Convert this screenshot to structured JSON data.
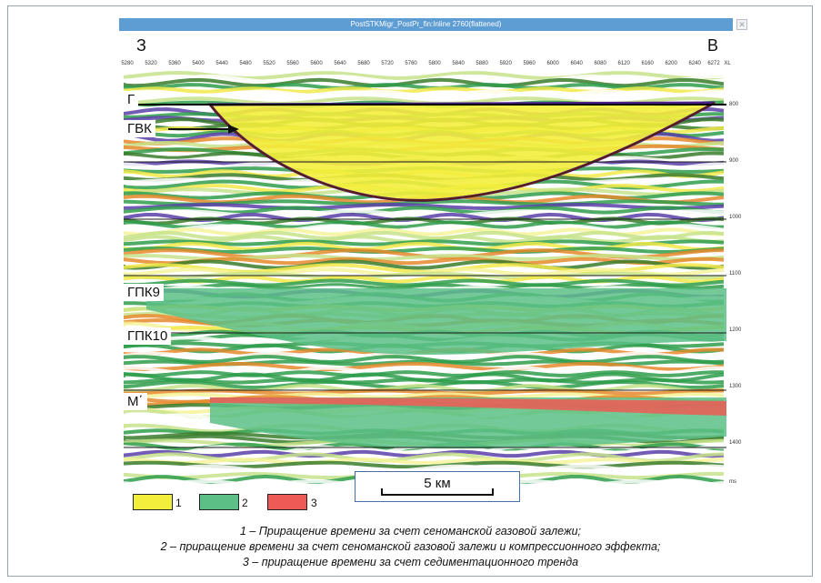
{
  "window": {
    "title": "PostSTKMigr_PostPr_fin:Inline 2760(flattened)",
    "close_glyph": "✕"
  },
  "directions": {
    "west": "З",
    "east": "В"
  },
  "xl_ticks": [
    "5280",
    "5320",
    "5360",
    "5400",
    "5440",
    "5480",
    "5520",
    "5560",
    "5600",
    "5640",
    "5680",
    "5720",
    "5760",
    "5800",
    "5840",
    "5880",
    "5920",
    "5960",
    "6000",
    "6040",
    "6080",
    "6120",
    "6160",
    "6200",
    "6240",
    "6272"
  ],
  "xl_label": "XL",
  "time_ticks": [
    "800",
    "900",
    "1000",
    "1100",
    "1200",
    "1300",
    "1400"
  ],
  "time_unit": "ms",
  "horizons": {
    "g": "Г",
    "gvk": "ГВК",
    "gpk9": "ГПК9",
    "gpk10": "ГПК10",
    "m": "М΄"
  },
  "scale": {
    "label": "5 км"
  },
  "legend": [
    {
      "number": "1",
      "color": "#f3ee3c"
    },
    {
      "number": "2",
      "color": "#5cbf86"
    },
    {
      "number": "3",
      "color": "#ee5a56"
    }
  ],
  "captions": [
    "1 – Приращение времени за счет сеноманской газовой залежи;",
    "2 – приращение времени за счет сеноманской газовой залежи и компрессионного эффекта;",
    "3 – приращение времени за счет седиментационного тренда"
  ]
}
